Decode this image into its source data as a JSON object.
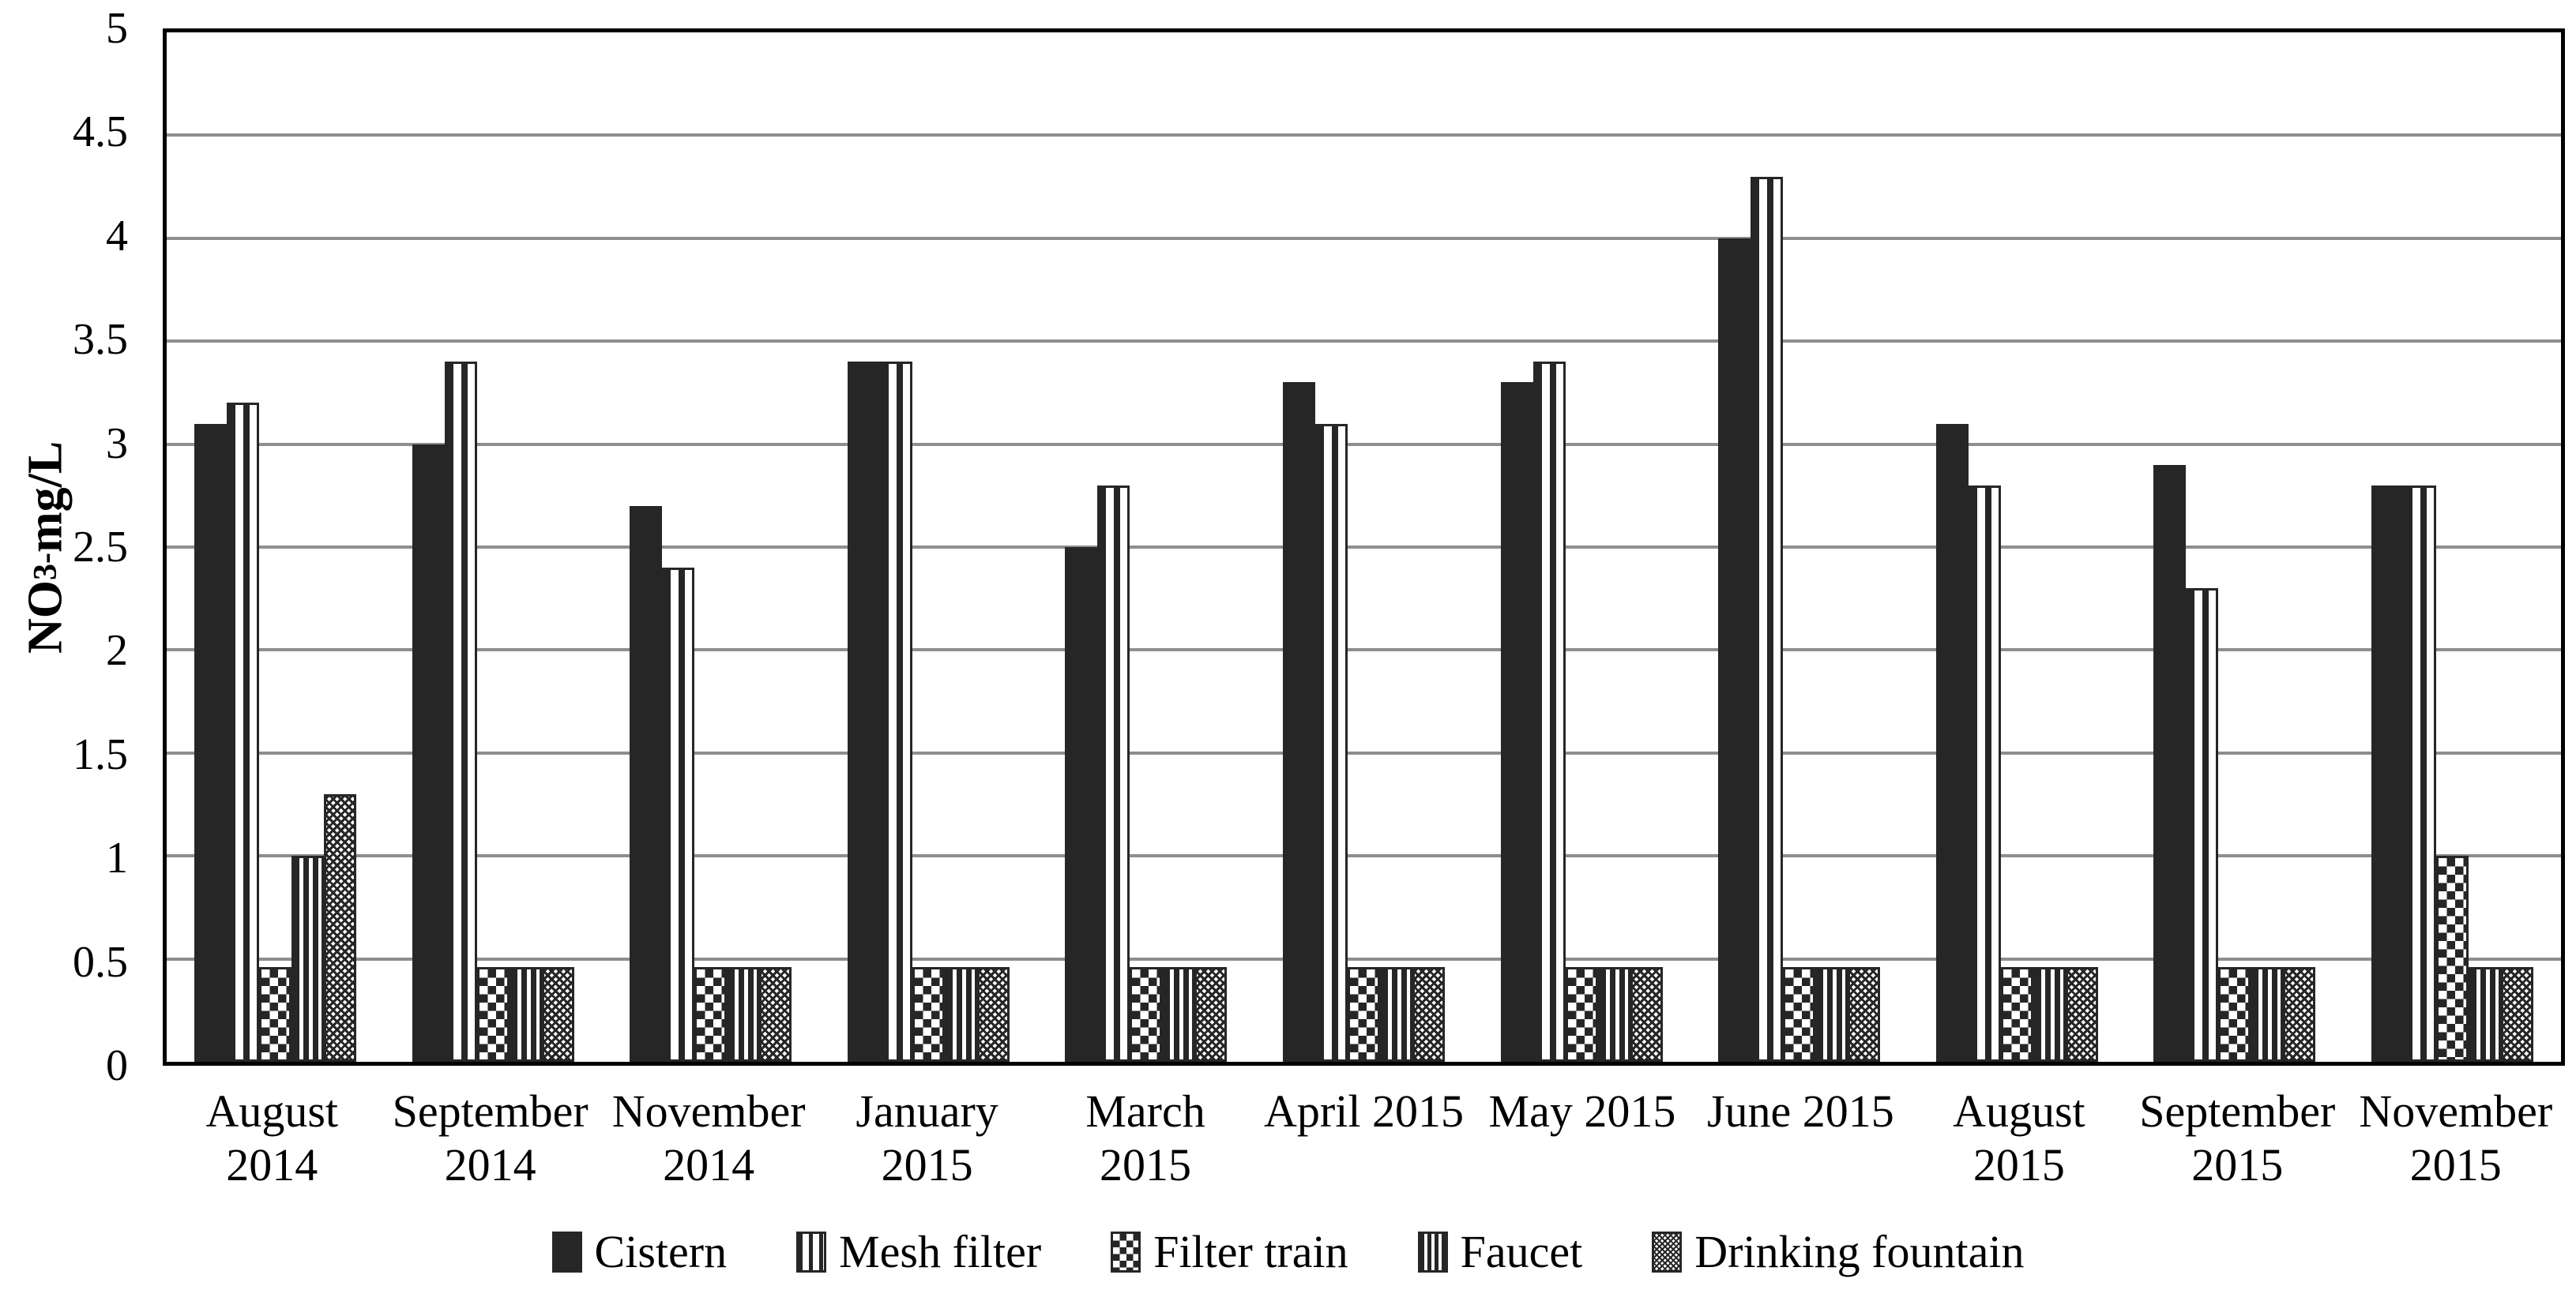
{
  "chart_data": {
    "type": "bar",
    "title": "",
    "ylabel": {
      "prefix": "NO",
      "subscript": "3",
      "superscript": "-",
      "suffix": " mg/L"
    },
    "ylim": [
      0,
      5
    ],
    "ytick_step": 0.5,
    "yticks": [
      "0",
      "0.5",
      "1",
      "1.5",
      "2",
      "2.5",
      "3",
      "3.5",
      "4",
      "4.5",
      "5"
    ],
    "grid": true,
    "legend_position": "bottom",
    "categories": [
      {
        "label": "August 2014",
        "lines": [
          "August",
          "2014"
        ]
      },
      {
        "label": "September 2014",
        "lines": [
          "September",
          "2014"
        ]
      },
      {
        "label": "November 2014",
        "lines": [
          "November",
          "2014"
        ]
      },
      {
        "label": "January 2015",
        "lines": [
          "January",
          "2015"
        ]
      },
      {
        "label": "March 2015",
        "lines": [
          "March",
          "2015"
        ]
      },
      {
        "label": "April 2015",
        "lines": [
          "April 2015"
        ]
      },
      {
        "label": "May 2015",
        "lines": [
          "May 2015"
        ]
      },
      {
        "label": "June 2015",
        "lines": [
          "June 2015"
        ]
      },
      {
        "label": "August 2015",
        "lines": [
          "August",
          "2015"
        ]
      },
      {
        "label": "September 2015",
        "lines": [
          "September",
          "2015"
        ]
      },
      {
        "label": "November 2015",
        "lines": [
          "November",
          "2015"
        ]
      }
    ],
    "series": [
      {
        "name": "Cistern",
        "pattern": "solid",
        "values": [
          3.1,
          3.0,
          2.7,
          3.4,
          2.5,
          3.3,
          3.3,
          4.0,
          3.1,
          2.9,
          2.8
        ]
      },
      {
        "name": "Mesh filter",
        "pattern": "wide-vertical-stripes",
        "values": [
          3.2,
          3.4,
          2.4,
          3.4,
          2.8,
          3.1,
          3.4,
          4.3,
          2.8,
          2.3,
          2.8
        ]
      },
      {
        "name": "Filter train",
        "pattern": "checkerboard",
        "values": [
          0.46,
          0.46,
          0.46,
          0.46,
          0.46,
          0.46,
          0.46,
          0.46,
          0.46,
          0.46,
          1.0
        ]
      },
      {
        "name": "Faucet",
        "pattern": "narrow-vertical-stripes",
        "values": [
          1.0,
          0.46,
          0.46,
          0.46,
          0.46,
          0.46,
          0.46,
          0.46,
          0.46,
          0.46,
          0.46
        ]
      },
      {
        "name": "Drinking fountain",
        "pattern": "fine-checkerboard",
        "values": [
          1.3,
          0.46,
          0.46,
          0.46,
          0.46,
          0.46,
          0.46,
          0.46,
          0.46,
          0.46,
          0.46
        ]
      }
    ],
    "colors": {
      "bar_dark": "#262626",
      "background": "#ffffff",
      "gridline": "#8e8e8e",
      "axis": "#000000"
    }
  }
}
